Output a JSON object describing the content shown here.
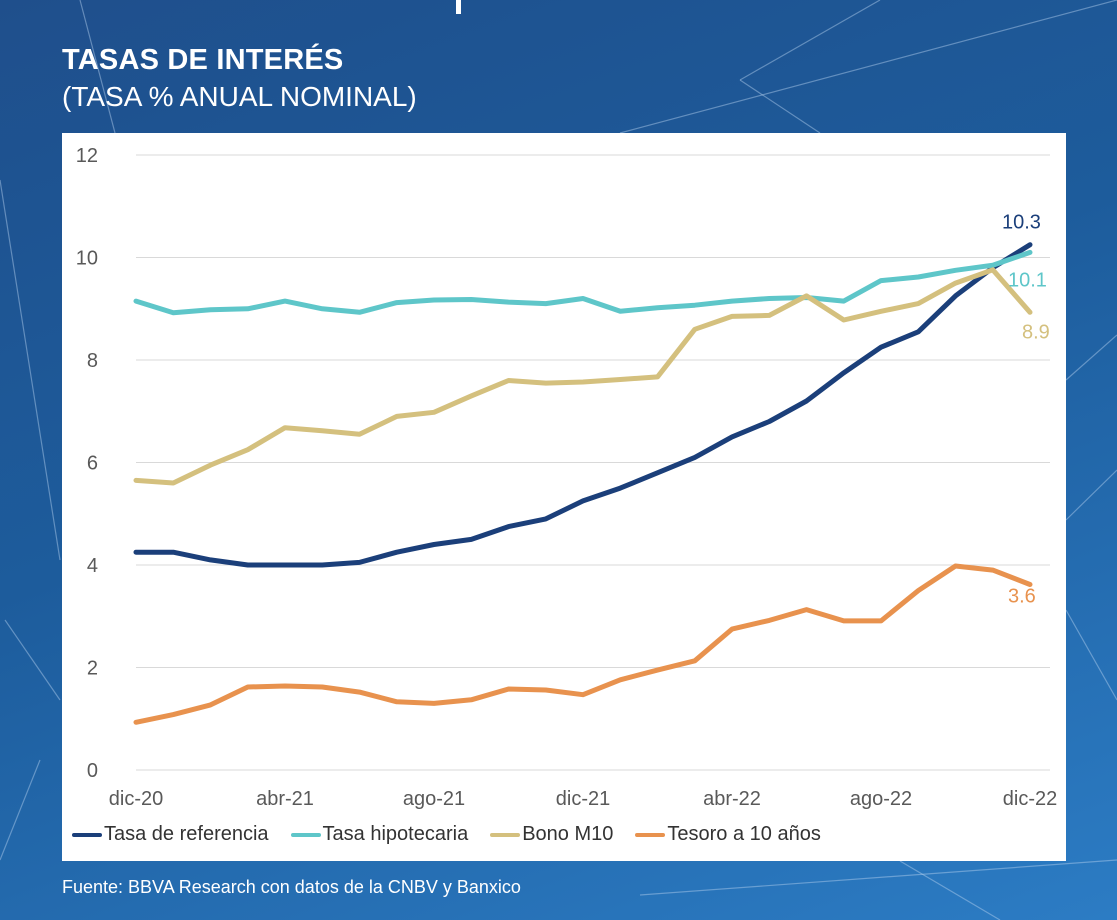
{
  "title": "TASAS DE INTERÉS",
  "subtitle": "(TASA % ANUAL NOMINAL)",
  "source": "Fuente: BBVA Research con datos de la CNBV y Banxico",
  "chart_data": {
    "type": "line",
    "x": [
      "dic-20",
      "ene-21",
      "feb-21",
      "mar-21",
      "abr-21",
      "may-21",
      "jun-21",
      "jul-21",
      "ago-21",
      "sep-21",
      "oct-21",
      "nov-21",
      "dic-21",
      "ene-22",
      "feb-22",
      "mar-22",
      "abr-22",
      "may-22",
      "jun-22",
      "jul-22",
      "ago-22",
      "sep-22",
      "oct-22",
      "nov-22",
      "dic-22"
    ],
    "x_tick_labels": [
      "dic-20",
      "abr-21",
      "ago-21",
      "dic-21",
      "abr-22",
      "ago-22",
      "dic-22"
    ],
    "y_ticks": [
      0,
      2,
      4,
      6,
      8,
      10,
      12
    ],
    "ylim": [
      0,
      12
    ],
    "grid": true,
    "legend_position": "bottom",
    "series": [
      {
        "name": "Tasa de referencia",
        "color": "#1b3f7a",
        "end_label": "10.3",
        "values": [
          4.25,
          4.25,
          4.1,
          4.0,
          4.0,
          4.0,
          4.05,
          4.25,
          4.4,
          4.5,
          4.75,
          4.9,
          5.25,
          5.5,
          5.8,
          6.1,
          6.5,
          6.8,
          7.2,
          7.75,
          8.25,
          8.55,
          9.25,
          9.8,
          10.25
        ]
      },
      {
        "name": "Tasa hipotecaria",
        "color": "#5ec6c9",
        "end_label": "10.1",
        "values": [
          9.15,
          8.92,
          8.98,
          9.0,
          9.15,
          9.0,
          8.93,
          9.12,
          9.17,
          9.18,
          9.13,
          9.1,
          9.2,
          8.95,
          9.02,
          9.07,
          9.15,
          9.2,
          9.22,
          9.15,
          9.55,
          9.62,
          9.75,
          9.85,
          10.1
        ]
      },
      {
        "name": "Bono M10",
        "color": "#d4c07e",
        "end_label": "8.9",
        "values": [
          5.65,
          5.6,
          5.95,
          6.25,
          6.68,
          6.62,
          6.55,
          6.9,
          6.98,
          7.3,
          7.6,
          7.55,
          7.57,
          7.62,
          7.67,
          8.6,
          8.85,
          8.87,
          9.25,
          8.78,
          8.95,
          9.1,
          9.5,
          9.76,
          8.93
        ]
      },
      {
        "name": "Tesoro a 10 años",
        "color": "#e8924e",
        "end_label": "3.6",
        "values": [
          0.93,
          1.08,
          1.27,
          1.62,
          1.64,
          1.62,
          1.52,
          1.33,
          1.3,
          1.37,
          1.58,
          1.56,
          1.47,
          1.76,
          1.95,
          2.13,
          2.75,
          2.92,
          3.13,
          2.91,
          2.91,
          3.5,
          3.98,
          3.9,
          3.62
        ]
      }
    ]
  }
}
